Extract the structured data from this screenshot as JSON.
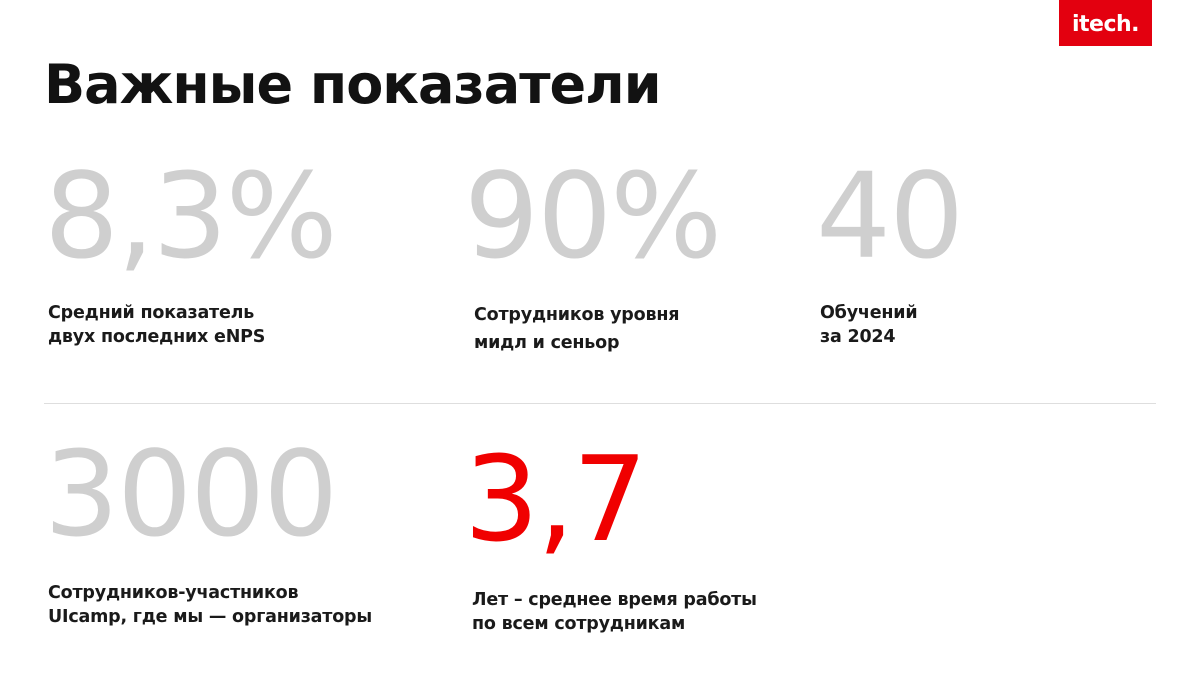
{
  "logo": "itech.",
  "title": "Важные показатели",
  "metrics": [
    {
      "value": "8,3%",
      "label_lines": [
        "Средний показатель",
        "двух последних eNPS"
      ]
    },
    {
      "value": "90%",
      "label_lines": [
        "Сотрудников уровня",
        "мидл и сеньор"
      ]
    },
    {
      "value": "40",
      "label_lines": [
        "Обучений",
        "за 2024"
      ]
    },
    {
      "value": "3000",
      "label_lines": [
        "Сотрудников-участников",
        "UIcamp, где мы — организаторы"
      ]
    },
    {
      "value": "3,7",
      "label_lines": [
        "Лет – среднее время работы",
        "по всем сотрудникам"
      ]
    }
  ],
  "colors": {
    "brand": "#e3000f",
    "metric_value": "#cfcfcf",
    "accent_value": "#f00000",
    "text": "#121212"
  }
}
